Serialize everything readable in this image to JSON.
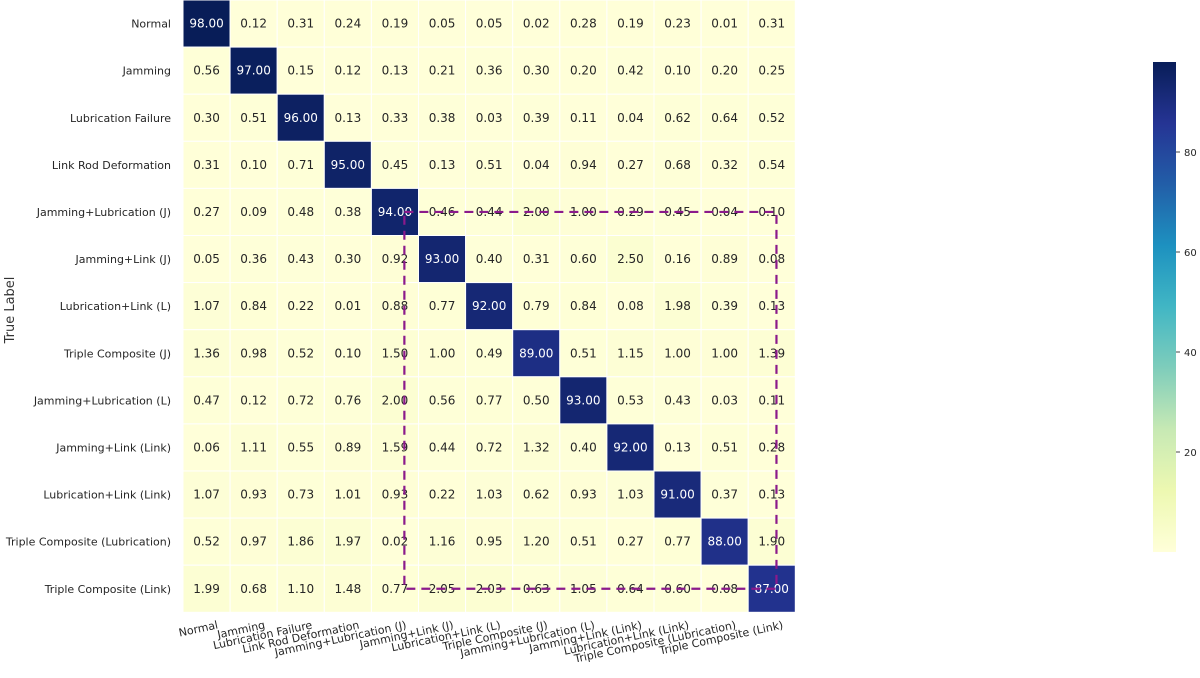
{
  "chart_data": {
    "type": "heatmap",
    "title": "",
    "xlabel": "",
    "ylabel": "True Label",
    "row_labels": [
      "Normal",
      "Jamming",
      "Lubrication Failure",
      "Link Rod Deformation",
      "Jamming+Lubrication (J)",
      "Jamming+Link (J)",
      "Lubrication+Link (L)",
      "Triple Composite (J)",
      "Jamming+Lubrication (L)",
      "Jamming+Link (Link)",
      "Lubrication+Link (Link)",
      "Triple Composite (Lubrication)",
      "Triple Composite (Link)"
    ],
    "col_labels": [
      "Normal",
      "Jamming",
      "Lubrication Failure",
      "Link Rod Deformation",
      "Jamming+Lubrication (J)",
      "Jamming+Link (J)",
      "Lubrication+Link (L)",
      "Triple Composite (J)",
      "Jamming+Lubrication (L)",
      "Jamming+Link (Link)",
      "Lubrication+Link (Link)",
      "Triple Composite (Lubrication)",
      "Triple Composite (Link)"
    ],
    "values": [
      [
        98.0,
        0.12,
        0.31,
        0.24,
        0.19,
        0.05,
        0.05,
        0.02,
        0.28,
        0.19,
        0.23,
        0.01,
        0.31
      ],
      [
        0.56,
        97.0,
        0.15,
        0.12,
        0.13,
        0.21,
        0.36,
        0.3,
        0.2,
        0.42,
        0.1,
        0.2,
        0.25
      ],
      [
        0.3,
        0.51,
        96.0,
        0.13,
        0.33,
        0.38,
        0.03,
        0.39,
        0.11,
        0.04,
        0.62,
        0.64,
        0.52
      ],
      [
        0.31,
        0.1,
        0.71,
        95.0,
        0.45,
        0.13,
        0.51,
        0.04,
        0.94,
        0.27,
        0.68,
        0.32,
        0.54
      ],
      [
        0.27,
        0.09,
        0.48,
        0.38,
        94.0,
        0.46,
        0.44,
        2.0,
        1.0,
        0.29,
        0.45,
        0.04,
        0.1
      ],
      [
        0.05,
        0.36,
        0.43,
        0.3,
        0.92,
        93.0,
        0.4,
        0.31,
        0.6,
        2.5,
        0.16,
        0.89,
        0.08
      ],
      [
        1.07,
        0.84,
        0.22,
        0.01,
        0.88,
        0.77,
        92.0,
        0.79,
        0.84,
        0.08,
        1.98,
        0.39,
        0.13
      ],
      [
        1.36,
        0.98,
        0.52,
        0.1,
        1.5,
        1.0,
        0.49,
        89.0,
        0.51,
        1.15,
        1.0,
        1.0,
        1.39
      ],
      [
        0.47,
        0.12,
        0.72,
        0.76,
        2.0,
        0.56,
        0.77,
        0.5,
        93.0,
        0.53,
        0.43,
        0.03,
        0.11
      ],
      [
        0.06,
        1.11,
        0.55,
        0.89,
        1.59,
        0.44,
        0.72,
        1.32,
        0.4,
        92.0,
        0.13,
        0.51,
        0.28
      ],
      [
        1.07,
        0.93,
        0.73,
        1.01,
        0.93,
        0.22,
        1.03,
        0.62,
        0.93,
        1.03,
        91.0,
        0.37,
        0.13
      ],
      [
        0.52,
        0.97,
        1.86,
        1.97,
        0.02,
        1.16,
        0.95,
        1.2,
        0.51,
        0.27,
        0.77,
        88.0,
        1.9
      ],
      [
        1.99,
        0.68,
        1.1,
        1.48,
        0.77,
        2.05,
        2.03,
        0.63,
        1.05,
        0.64,
        0.6,
        0.08,
        87.0
      ]
    ],
    "value_format": "2 decimals",
    "colormap": "YlGnBu",
    "colorbar": {
      "ticks": [
        20,
        40,
        60,
        80
      ],
      "range": [
        0,
        98
      ]
    },
    "highlight_box": {
      "rows": [
        4,
        12
      ],
      "cols": [
        4,
        12
      ],
      "color": "#8b1a8b",
      "style": "dashed"
    },
    "grid": false,
    "legend": "colorbar-right"
  }
}
